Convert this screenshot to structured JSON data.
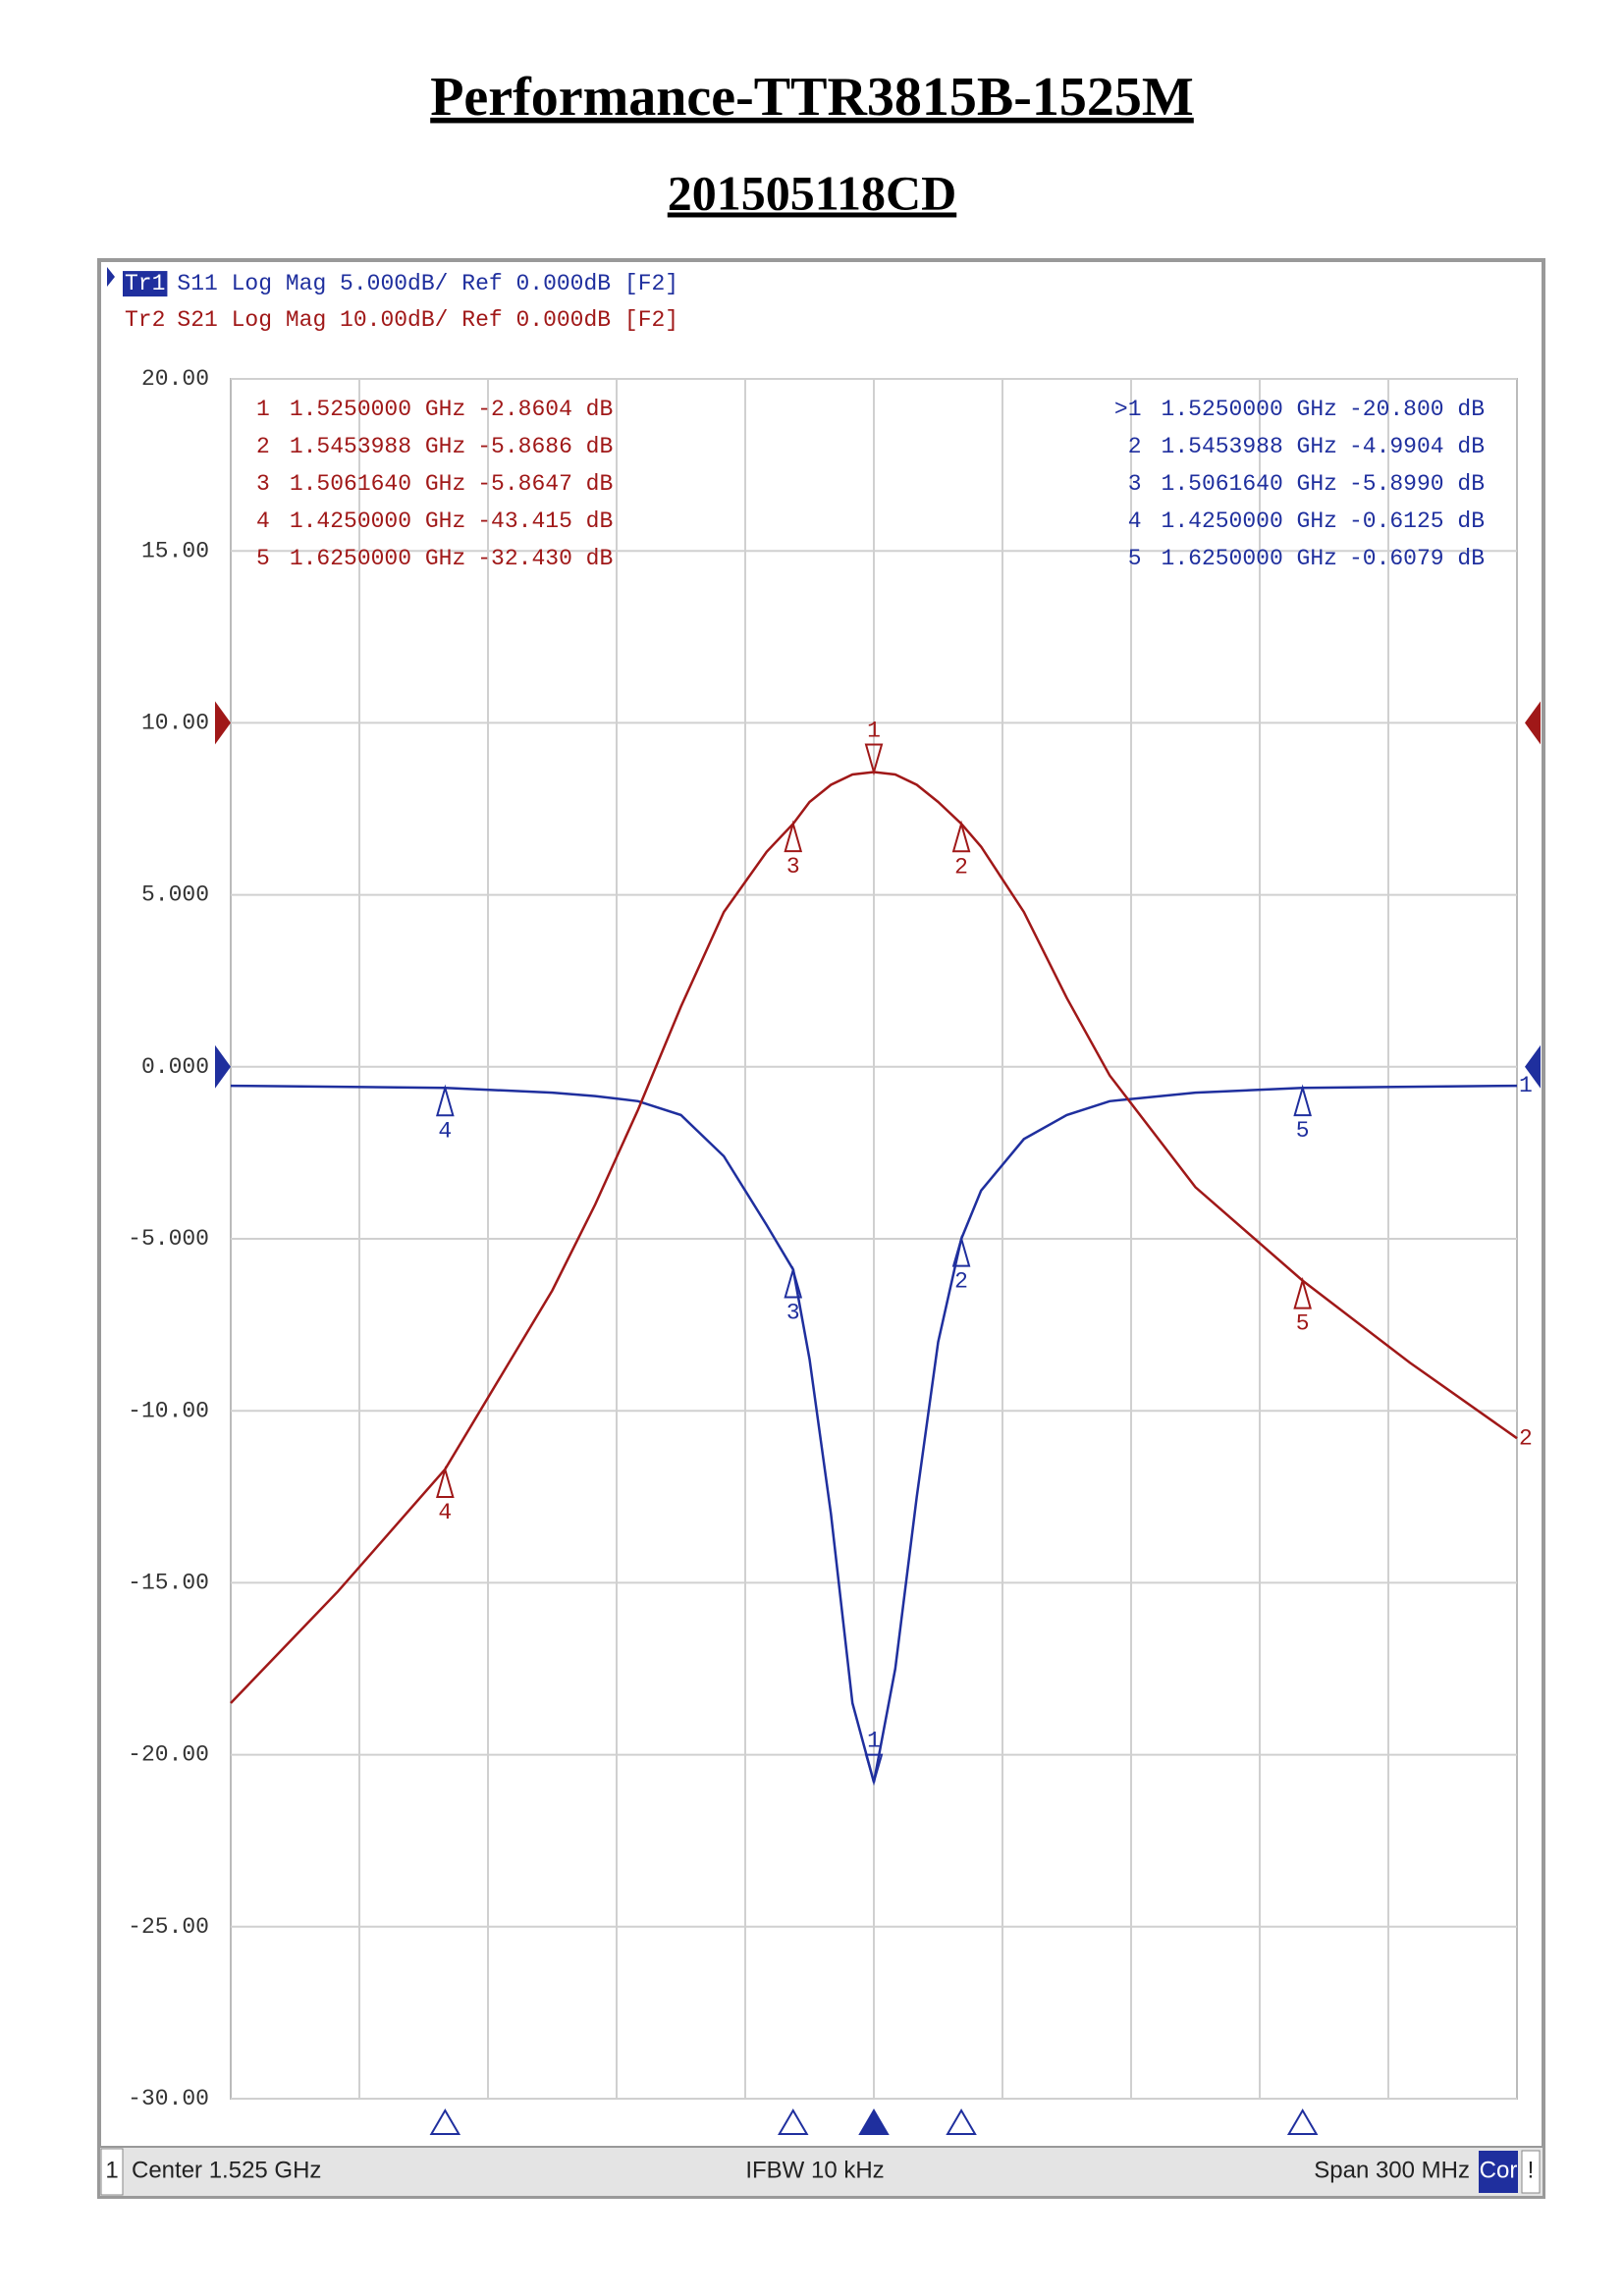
{
  "chart_data": {
    "type": "line",
    "title": "Performance-TTR3815B-1525M",
    "subtitle": "201505118CD",
    "x": [
      1.375,
      1.4,
      1.425,
      1.45,
      1.46,
      1.47,
      1.48,
      1.49,
      1.5,
      1.5062,
      1.51,
      1.515,
      1.52,
      1.525,
      1.53,
      1.535,
      1.54,
      1.5454,
      1.55,
      1.56,
      1.57,
      1.58,
      1.6,
      1.625,
      1.65,
      1.675
    ],
    "xlim": [
      1.375,
      1.675
    ],
    "ylim": [
      -30,
      20
    ],
    "yticks": [
      {
        "value": 20,
        "label": "20.00"
      },
      {
        "value": 15,
        "label": "15.00"
      },
      {
        "value": 10,
        "label": "10.00"
      },
      {
        "value": 5,
        "label": "5.000"
      },
      {
        "value": 0,
        "label": "0.000"
      },
      {
        "value": -5,
        "label": "-5.000"
      },
      {
        "value": -10,
        "label": "-10.00"
      },
      {
        "value": -15,
        "label": "-15.00"
      },
      {
        "value": -20,
        "label": "-20.00"
      },
      {
        "value": -25,
        "label": "-25.00"
      },
      {
        "value": -30,
        "label": "-30.00"
      }
    ],
    "y2lim": [
      -80,
      20
    ],
    "grid": true,
    "series": [
      {
        "name": "Tr1",
        "label": "S11 Log Mag 5.000dB/ Ref 0.000dB [F2]",
        "end_label": "1",
        "color": "#1f2f9e",
        "ref": 0,
        "values": [
          -0.55,
          -0.58,
          -0.61,
          -0.75,
          -0.85,
          -1.0,
          -1.4,
          -2.6,
          -4.6,
          -5.9,
          -8.5,
          -13,
          -18.5,
          -20.8,
          -17.5,
          -12.5,
          -8,
          -5.0,
          -3.6,
          -2.1,
          -1.4,
          -1.0,
          -0.75,
          -0.61,
          -0.58,
          -0.55
        ],
        "markers": [
          {
            "name": "1",
            "table_name": ">1",
            "x": 1.525,
            "x_label": "1.5250000 GHz",
            "value": -20.8,
            "value_label": "-20.800 dB"
          },
          {
            "name": "2",
            "table_name": "2",
            "x": 1.5453988,
            "x_label": "1.5453988 GHz",
            "value": -4.9904,
            "value_label": "-4.9904 dB"
          },
          {
            "name": "3",
            "table_name": "3",
            "x": 1.506164,
            "x_label": "1.5061640 GHz",
            "value": -5.899,
            "value_label": "-5.8990 dB"
          },
          {
            "name": "4",
            "table_name": "4",
            "x": 1.425,
            "x_label": "1.4250000 GHz",
            "value": -0.6125,
            "value_label": "-0.6125 dB"
          },
          {
            "name": "5",
            "table_name": "5",
            "x": 1.625,
            "x_label": "1.6250000 GHz",
            "value": -0.6079,
            "value_label": "-0.6079 dB"
          }
        ]
      },
      {
        "name": "Tr2",
        "label": "S21 Log Mag 10.00dB/ Ref 0.000dB [F2]",
        "end_label": "2",
        "color": "#a01818",
        "ref": 0,
        "axis": "y2",
        "values": [
          -57,
          -50.5,
          -43.4,
          -33,
          -28,
          -22.5,
          -16.5,
          -11,
          -7.5,
          -5.86,
          -4.6,
          -3.6,
          -3.0,
          -2.86,
          -3.0,
          -3.6,
          -4.6,
          -5.87,
          -7.2,
          -11,
          -16,
          -20.5,
          -27,
          -32.43,
          -37.2,
          -41.6
        ],
        "markers": [
          {
            "name": "1",
            "table_name": "1",
            "x": 1.525,
            "x_label": "1.5250000 GHz",
            "value": -2.8604,
            "value_label": "-2.8604 dB"
          },
          {
            "name": "2",
            "table_name": "2",
            "x": 1.5453988,
            "x_label": "1.5453988 GHz",
            "value": -5.8686,
            "value_label": "-5.8686 dB"
          },
          {
            "name": "3",
            "table_name": "3",
            "x": 1.506164,
            "x_label": "1.5061640 GHz",
            "value": -5.8647,
            "value_label": "-5.8647 dB"
          },
          {
            "name": "4",
            "table_name": "4",
            "x": 1.425,
            "x_label": "1.4250000 GHz",
            "value": -43.415,
            "value_label": "-43.415 dB"
          },
          {
            "name": "5",
            "table_name": "5",
            "x": 1.625,
            "x_label": "1.6250000 GHz",
            "value": -32.43,
            "value_label": "-32.430 dB"
          }
        ]
      }
    ],
    "status_bar": {
      "channel": "1",
      "center": "Center 1.525 GHz",
      "ifbw": "IFBW 10 kHz",
      "span": "Span 300 MHz",
      "cor": "Cor",
      "alert": "!"
    }
  }
}
